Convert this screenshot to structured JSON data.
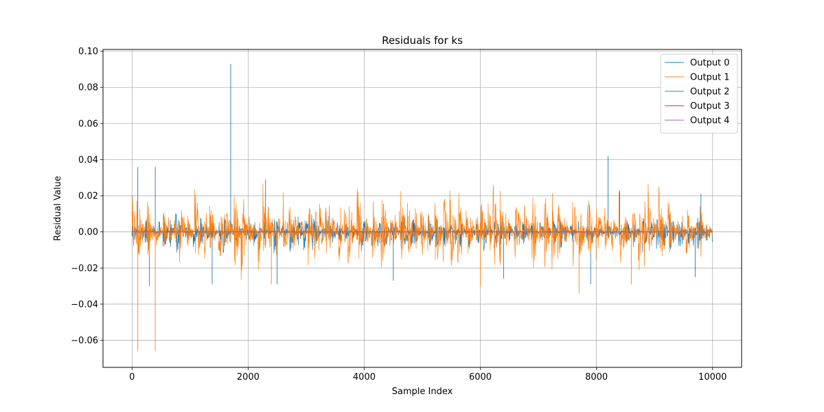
{
  "chart_data": {
    "type": "line",
    "title": "Residuals for ks",
    "xlabel": "Sample Index",
    "ylabel": "Residual Value",
    "xlim": [
      -500,
      10500
    ],
    "ylim": [
      -0.075,
      0.101
    ],
    "xticks": [
      0,
      2000,
      4000,
      6000,
      8000,
      10000
    ],
    "xtick_labels": [
      "0",
      "2000",
      "4000",
      "6000",
      "8000",
      "10000"
    ],
    "yticks": [
      -0.06,
      -0.04,
      -0.02,
      0.0,
      0.02,
      0.04,
      0.06,
      0.08,
      0.1
    ],
    "ytick_labels": [
      "−0.06",
      "−0.04",
      "−0.02",
      "0.00",
      "0.02",
      "0.04",
      "0.06",
      "0.08",
      "0.10"
    ],
    "grid": true,
    "legend_position": "top-right",
    "n_samples": 10000,
    "series": [
      {
        "name": "Output 0",
        "color": "#1f77b4",
        "envelope_max": 0.01,
        "envelope_min": -0.012,
        "spikes": [
          [
            100,
            0.036
          ],
          [
            300,
            -0.03
          ],
          [
            400,
            0.036
          ],
          [
            1380,
            -0.029
          ],
          [
            1700,
            0.093
          ],
          [
            2300,
            0.029
          ],
          [
            2500,
            -0.029
          ],
          [
            4500,
            -0.027
          ],
          [
            6400,
            -0.026
          ],
          [
            7900,
            -0.029
          ],
          [
            8200,
            0.042
          ],
          [
            8400,
            0.023
          ],
          [
            9700,
            -0.025
          ],
          [
            9800,
            0.021
          ]
        ]
      },
      {
        "name": "Output 1",
        "color": "#ff7f0e",
        "envelope_max": 0.03,
        "envelope_min": -0.027,
        "spikes": [
          [
            100,
            -0.066
          ],
          [
            400,
            -0.066
          ],
          [
            2400,
            -0.029
          ],
          [
            6000,
            -0.03
          ],
          [
            7700,
            -0.034
          ],
          [
            8600,
            -0.029
          ]
        ]
      },
      {
        "name": "Output 2",
        "color": "#2ca02c",
        "envelope_max": 0.0003,
        "envelope_min": -0.0003,
        "spikes": []
      },
      {
        "name": "Output 3",
        "color": "#d62728",
        "envelope_max": 0.0003,
        "envelope_min": -0.0003,
        "spikes": []
      },
      {
        "name": "Output 4",
        "color": "#9467bd",
        "envelope_max": 0.0003,
        "envelope_min": -0.0003,
        "spikes": []
      }
    ]
  }
}
